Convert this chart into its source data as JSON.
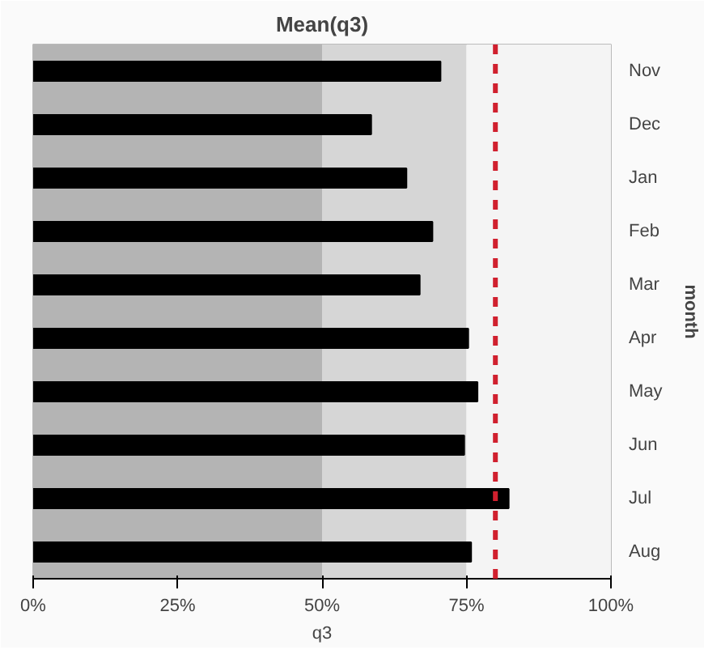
{
  "chart_data": {
    "type": "bar",
    "orientation": "horizontal",
    "title": "Mean(q3)",
    "xlabel": "q3",
    "y2label": "month",
    "categories": [
      "Nov",
      "Dec",
      "Jan",
      "Feb",
      "Mar",
      "Apr",
      "May",
      "Jun",
      "Jul",
      "Aug"
    ],
    "values": [
      70.5,
      58.5,
      64.6,
      69.1,
      66.9,
      75.3,
      76.9,
      74.6,
      82.3,
      75.8
    ],
    "color": "#000000",
    "xlim": [
      0,
      100
    ],
    "xticks": [
      {
        "value": 0,
        "label": "0%"
      },
      {
        "value": 25,
        "label": "25%"
      },
      {
        "value": 50,
        "label": "50%"
      },
      {
        "value": 75,
        "label": "75%"
      },
      {
        "value": 100,
        "label": "100%"
      }
    ],
    "bands": [
      {
        "axis": "x",
        "from": 0,
        "to": 50,
        "color": "#b4b4b4"
      },
      {
        "axis": "x",
        "from": 50,
        "to": 75,
        "color": "#d6d6d6"
      },
      {
        "axis": "x",
        "from": 75,
        "to": 100,
        "color": "#f4f4f4"
      }
    ],
    "ref_lines": [
      {
        "axis": "x",
        "value": 80,
        "color": "#d0202e",
        "line_style": "dashed"
      }
    ],
    "grid": false
  }
}
